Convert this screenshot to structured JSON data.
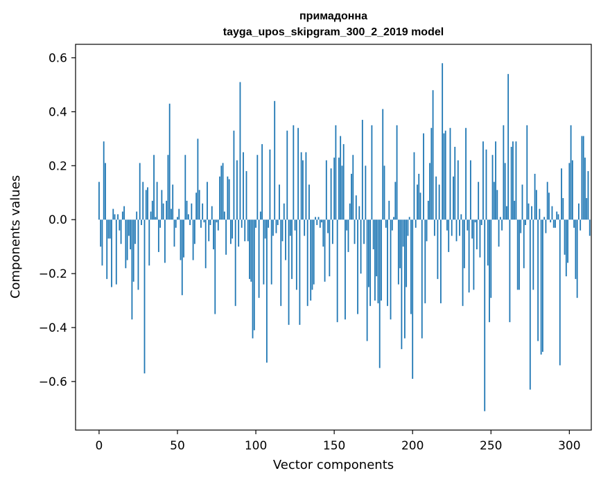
{
  "chart_data": {
    "type": "bar",
    "title": "примадонна",
    "subtitle": "tayga_upos_skipgram_300_2_2019 model",
    "xlabel": "Vector components",
    "ylabel": "Components values",
    "xlim": [
      -15,
      314
    ],
    "ylim": [
      -0.78,
      0.65
    ],
    "x_ticks": [
      0,
      50,
      100,
      150,
      200,
      250,
      300
    ],
    "y_ticks": [
      -0.6,
      -0.4,
      -0.2,
      0.0,
      0.2,
      0.4,
      0.6
    ],
    "y_tick_labels": [
      "−0.6",
      "−0.4",
      "−0.2",
      "0.0",
      "0.2",
      "0.4",
      "0.6"
    ],
    "bar_color": "#1f77b4",
    "grid": false,
    "values": [
      0.14,
      -0.1,
      -0.17,
      0.29,
      0.21,
      -0.22,
      -0.07,
      -0.07,
      -0.25,
      0.04,
      0.02,
      -0.24,
      0.02,
      -0.04,
      -0.09,
      0.03,
      0.05,
      -0.18,
      -0.15,
      -0.06,
      -0.11,
      -0.37,
      -0.23,
      -0.09,
      0.03,
      -0.26,
      0.21,
      -0.02,
      0.14,
      -0.57,
      0.11,
      0.12,
      -0.17,
      0.03,
      0.07,
      0.24,
      0.01,
      0.14,
      -0.12,
      -0.03,
      0.11,
      0.06,
      -0.16,
      0.07,
      0.24,
      0.43,
      0.04,
      0.13,
      -0.1,
      -0.03,
      0.01,
      0.04,
      -0.15,
      -0.28,
      -0.14,
      0.24,
      0.07,
      0.02,
      -0.02,
      0.06,
      -0.15,
      -0.09,
      0.1,
      0.3,
      0.11,
      -0.03,
      0.06,
      -0.01,
      -0.18,
      0.14,
      -0.08,
      -0.02,
      0.05,
      -0.11,
      -0.35,
      -0.01,
      -0.04,
      0.16,
      0.2,
      0.21,
      0.03,
      -0.13,
      0.16,
      0.15,
      -0.09,
      -0.07,
      0.33,
      -0.32,
      0.22,
      -0.1,
      0.51,
      -0.03,
      0.25,
      -0.08,
      0.18,
      -0.08,
      -0.22,
      -0.23,
      -0.44,
      -0.41,
      -0.03,
      0.24,
      -0.29,
      0.03,
      0.28,
      -0.24,
      -0.07,
      -0.53,
      -0.03,
      0.26,
      -0.24,
      -0.06,
      0.44,
      -0.05,
      -0.02,
      0.13,
      -0.32,
      -0.08,
      0.06,
      -0.15,
      0.33,
      -0.39,
      -0.06,
      -0.22,
      0.35,
      -0.04,
      -0.26,
      0.34,
      -0.39,
      0.25,
      0.22,
      -0.06,
      0.25,
      -0.32,
      0.13,
      -0.3,
      -0.26,
      -0.24,
      0.01,
      -0.02,
      0.01,
      -0.03,
      -0.01,
      -0.1,
      -0.23,
      0.22,
      -0.05,
      -0.21,
      0.19,
      -0.09,
      0.23,
      0.35,
      -0.38,
      0.23,
      0.31,
      0.2,
      0.28,
      -0.37,
      -0.04,
      -0.12,
      0.06,
      0.17,
      0.24,
      -0.09,
      0.09,
      -0.35,
      0.05,
      -0.2,
      0.37,
      -0.09,
      0.2,
      -0.45,
      -0.25,
      -0.32,
      0.35,
      -0.11,
      -0.3,
      -0.21,
      -0.31,
      -0.55,
      -0.3,
      0.41,
      0.2,
      -0.03,
      -0.32,
      0.07,
      -0.37,
      -0.04,
      0.01,
      0.14,
      0.35,
      -0.24,
      -0.18,
      -0.48,
      -0.1,
      -0.44,
      -0.25,
      -0.06,
      0.01,
      -0.35,
      -0.59,
      0.25,
      -0.03,
      0.13,
      0.17,
      0.1,
      -0.44,
      0.32,
      -0.31,
      -0.08,
      0.07,
      0.21,
      0.34,
      0.48,
      -0.06,
      0.16,
      -0.22,
      0.13,
      -0.31,
      0.58,
      0.32,
      0.33,
      -0.04,
      -0.12,
      0.34,
      -0.06,
      0.16,
      0.27,
      -0.08,
      0.22,
      -0.06,
      0.02,
      -0.32,
      -0.18,
      0.34,
      -0.04,
      -0.27,
      0.22,
      -0.07,
      -0.26,
      -0.01,
      -0.11,
      0.14,
      -0.14,
      -0.02,
      0.29,
      -0.71,
      0.26,
      -0.17,
      -0.38,
      -0.29,
      0.24,
      0.14,
      0.29,
      0.11,
      -0.1,
      0.01,
      -0.04,
      0.35,
      0.21,
      0.05,
      0.54,
      -0.38,
      0.27,
      0.29,
      0.07,
      0.29,
      -0.26,
      -0.26,
      -0.05,
      0.13,
      -0.18,
      -0.02,
      0.35,
      0.06,
      -0.63,
      0.05,
      -0.26,
      0.17,
      0.11,
      -0.45,
      0.04,
      -0.5,
      -0.49,
      0.01,
      -0.05,
      0.14,
      0.1,
      -0.01,
      0.05,
      -0.03,
      -0.03,
      0.03,
      0.02,
      -0.54,
      0.19,
      0.08,
      -0.13,
      -0.21,
      -0.16,
      0.21,
      0.35,
      0.22,
      -0.03,
      -0.22,
      -0.29,
      0.06,
      -0.04,
      0.31,
      0.31,
      0.23,
      0.08,
      0.18,
      -0.06
    ]
  }
}
